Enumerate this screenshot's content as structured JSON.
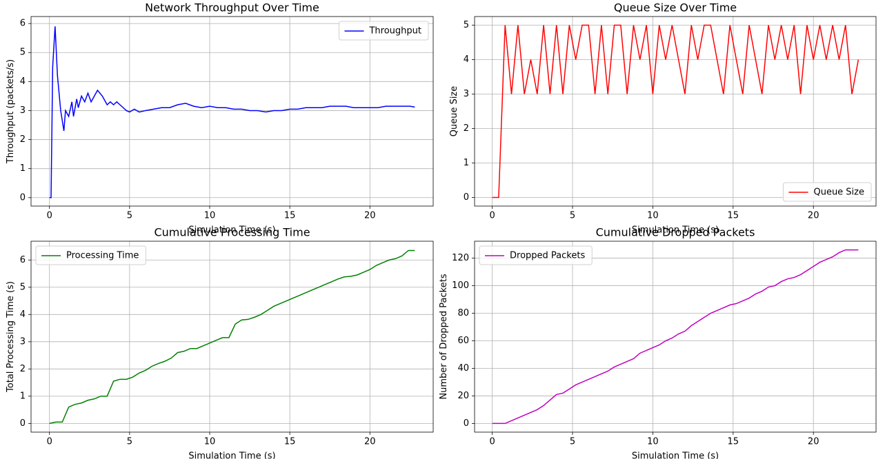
{
  "chart_data": [
    {
      "type": "line",
      "title": "Network Throughput Over Time",
      "x_label": "Simulation Time (s)",
      "y_label": "Throughput (packets/s)",
      "x": [
        0,
        0.1,
        0.2,
        0.35,
        0.5,
        0.7,
        0.9,
        1.0,
        1.2,
        1.4,
        1.5,
        1.7,
        1.8,
        2.0,
        2.2,
        2.4,
        2.6,
        2.8,
        3.0,
        3.3,
        3.6,
        3.8,
        4.0,
        4.2,
        4.5,
        4.8,
        5.0,
        5.3,
        5.6,
        6.0,
        6.5,
        7.0,
        7.5,
        8.0,
        8.5,
        9.0,
        9.5,
        10,
        10.5,
        11,
        11.5,
        12,
        12.5,
        13,
        13.5,
        14,
        14.5,
        15,
        15.5,
        16,
        16.5,
        17,
        17.5,
        18,
        18.5,
        19,
        19.5,
        20,
        20.5,
        21,
        21.5,
        22,
        22.5,
        22.8
      ],
      "series": [
        {
          "name": "Throughput",
          "color": "#0000ff",
          "values": [
            0,
            0,
            4.5,
            5.9,
            4.2,
            3.0,
            2.3,
            3.0,
            2.8,
            3.3,
            2.8,
            3.4,
            3.1,
            3.5,
            3.3,
            3.6,
            3.3,
            3.5,
            3.7,
            3.5,
            3.2,
            3.3,
            3.2,
            3.3,
            3.15,
            3.0,
            2.95,
            3.05,
            2.95,
            3.0,
            3.05,
            3.1,
            3.1,
            3.2,
            3.25,
            3.15,
            3.1,
            3.15,
            3.1,
            3.1,
            3.05,
            3.05,
            3.0,
            3.0,
            2.95,
            3.0,
            3.0,
            3.05,
            3.05,
            3.1,
            3.1,
            3.1,
            3.15,
            3.15,
            3.15,
            3.1,
            3.1,
            3.1,
            3.1,
            3.15,
            3.15,
            3.15,
            3.15,
            3.12
          ]
        }
      ],
      "xlim": [
        -1.15,
        23.95
      ],
      "ylim": [
        -0.29,
        6.24
      ],
      "xticks": [
        0,
        5,
        10,
        15,
        20
      ],
      "yticks": [
        0,
        1,
        2,
        3,
        4,
        5,
        6
      ],
      "grid": true,
      "legend": "upper right"
    },
    {
      "type": "line",
      "title": "Queue Size Over Time",
      "x_label": "Simulation Time (s)",
      "y_label": "Queue Size",
      "x": [
        0,
        0.4,
        0.8,
        1.2,
        1.6,
        2,
        2.4,
        2.8,
        3.2,
        3.6,
        4,
        4.4,
        4.8,
        5.2,
        5.6,
        6,
        6.4,
        6.8,
        7.2,
        7.6,
        8,
        8.4,
        8.8,
        9.2,
        9.6,
        10,
        10.4,
        10.8,
        11.2,
        11.6,
        12,
        12.4,
        12.8,
        13.2,
        13.6,
        14,
        14.4,
        14.8,
        15.2,
        15.6,
        16,
        16.4,
        16.8,
        17.2,
        17.6,
        18,
        18.4,
        18.8,
        19.2,
        19.6,
        20,
        20.4,
        20.8,
        21.2,
        21.6,
        22,
        22.4,
        22.8
      ],
      "series": [
        {
          "name": "Queue Size",
          "color": "#ff0000",
          "values": [
            0,
            0,
            5,
            3,
            5,
            3,
            4,
            3,
            5,
            3,
            5,
            3,
            5,
            4,
            5,
            5,
            3,
            5,
            3,
            5,
            5,
            3,
            5,
            4,
            5,
            3,
            5,
            4,
            5,
            4,
            3,
            5,
            4,
            5,
            5,
            4,
            3,
            5,
            4,
            3,
            5,
            4,
            3,
            5,
            4,
            5,
            4,
            5,
            3,
            5,
            4,
            5,
            4,
            5,
            4,
            5,
            3,
            4
          ]
        }
      ],
      "xlim": [
        -1.1,
        23.9
      ],
      "ylim": [
        -0.25,
        5.25
      ],
      "xticks": [
        0,
        5,
        10,
        15,
        20
      ],
      "yticks": [
        0,
        1,
        2,
        3,
        4,
        5
      ],
      "grid": true,
      "legend": "lower right"
    },
    {
      "type": "line",
      "title": "Cumulative Processing Time",
      "x_label": "Simulation Time (s)",
      "y_label": "Total Processing Time (s)",
      "x": [
        0,
        0.4,
        0.8,
        1.2,
        1.6,
        2,
        2.4,
        2.8,
        3.2,
        3.6,
        4,
        4.4,
        4.8,
        5.2,
        5.6,
        6,
        6.4,
        6.8,
        7.2,
        7.6,
        8,
        8.4,
        8.8,
        9.2,
        9.6,
        10,
        10.4,
        10.8,
        11.2,
        11.6,
        12,
        12.4,
        12.8,
        13.2,
        13.6,
        14,
        14.4,
        14.8,
        15.2,
        15.6,
        16,
        16.4,
        16.8,
        17.2,
        17.6,
        18,
        18.4,
        18.8,
        19.2,
        19.6,
        20,
        20.4,
        20.8,
        21.2,
        21.6,
        22,
        22.4,
        22.8
      ],
      "series": [
        {
          "name": "Processing Time",
          "color": "#008000",
          "values": [
            0,
            0.05,
            0.05,
            0.6,
            0.7,
            0.75,
            0.85,
            0.9,
            1.0,
            1.0,
            1.55,
            1.62,
            1.62,
            1.7,
            1.85,
            1.95,
            2.1,
            2.2,
            2.28,
            2.4,
            2.6,
            2.65,
            2.75,
            2.75,
            2.85,
            2.95,
            3.05,
            3.15,
            3.15,
            3.65,
            3.8,
            3.82,
            3.9,
            4.0,
            4.15,
            4.3,
            4.4,
            4.5,
            4.6,
            4.7,
            4.8,
            4.9,
            5.0,
            5.1,
            5.2,
            5.3,
            5.38,
            5.4,
            5.45,
            5.55,
            5.65,
            5.8,
            5.9,
            6.0,
            6.05,
            6.15,
            6.35,
            6.35
          ]
        }
      ],
      "xlim": [
        -1.15,
        23.95
      ],
      "ylim": [
        -0.32,
        6.69
      ],
      "xticks": [
        0,
        5,
        10,
        15,
        20
      ],
      "yticks": [
        0,
        1,
        2,
        3,
        4,
        5,
        6
      ],
      "grid": true,
      "legend": "upper left"
    },
    {
      "type": "line",
      "title": "Cumulative Dropped Packets",
      "x_label": "Simulation Time (s)",
      "y_label": "Number of Dropped Packets",
      "x": [
        0,
        0.4,
        0.8,
        1.2,
        1.6,
        2,
        2.4,
        2.8,
        3.2,
        3.6,
        4,
        4.4,
        4.8,
        5.2,
        5.6,
        6,
        6.4,
        6.8,
        7.2,
        7.6,
        8,
        8.4,
        8.8,
        9.2,
        9.6,
        10,
        10.4,
        10.8,
        11.2,
        11.6,
        12,
        12.4,
        12.8,
        13.2,
        13.6,
        14,
        14.4,
        14.8,
        15.2,
        15.6,
        16,
        16.4,
        16.8,
        17.2,
        17.6,
        18,
        18.4,
        18.8,
        19.2,
        19.6,
        20,
        20.4,
        20.8,
        21.2,
        21.6,
        22,
        22.4,
        22.8
      ],
      "series": [
        {
          "name": "Dropped Packets",
          "color": "#bf00bf",
          "values": [
            0,
            0,
            0,
            2,
            4,
            6,
            8,
            10,
            13,
            17,
            21,
            22,
            25,
            28,
            30,
            32,
            34,
            36,
            38,
            41,
            43,
            45,
            47,
            51,
            53,
            55,
            57,
            60,
            62,
            65,
            67,
            71,
            74,
            77,
            80,
            82,
            84,
            86,
            87,
            89,
            91,
            94,
            96,
            99,
            100,
            103,
            105,
            106,
            108,
            111,
            114,
            117,
            119,
            121,
            124,
            126,
            126,
            126
          ]
        }
      ],
      "xlim": [
        -1.1,
        23.9
      ],
      "ylim": [
        -6.3,
        132.3
      ],
      "xticks": [
        0,
        5,
        10,
        15,
        20
      ],
      "yticks": [
        0,
        20,
        40,
        60,
        80,
        100,
        120
      ],
      "grid": true,
      "legend": "upper left"
    }
  ]
}
